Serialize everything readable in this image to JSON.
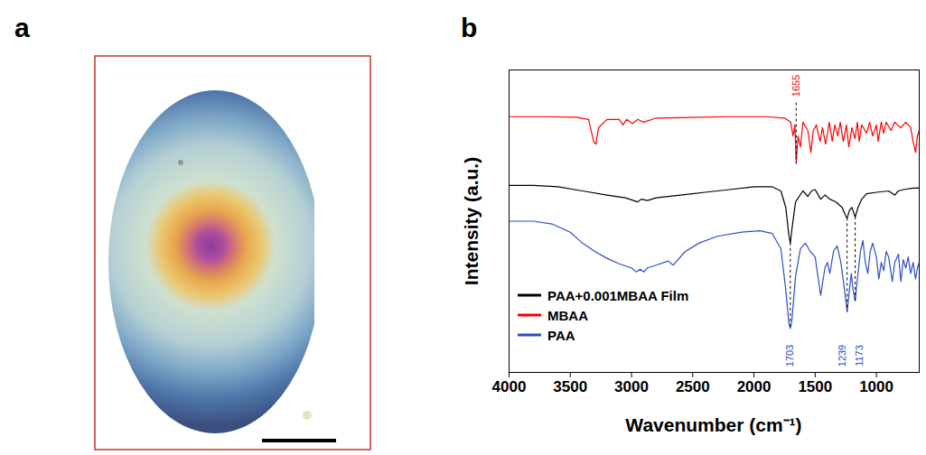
{
  "panel_labels": [
    "a",
    "b"
  ],
  "chart_data": {
    "type": "line",
    "x_label": "Wavenumber (cm⁻¹)",
    "y_label": "Intensity (a.u.)",
    "xlim": [
      4000,
      650
    ],
    "xticks": [
      4000,
      3500,
      3000,
      2500,
      2000,
      1500,
      1000
    ],
    "ylim": [
      0,
      110
    ],
    "tick_labels": "x",
    "grid": false,
    "legend": "lower left",
    "series": [
      {
        "name": "PAA+0.001MBAA Film",
        "color": "#000000",
        "x": [
          4000,
          3800,
          3600,
          3400,
          3200,
          3050,
          2950,
          2920,
          2870,
          2800,
          2600,
          2400,
          2200,
          2000,
          1850,
          1780,
          1740,
          1715,
          1703,
          1690,
          1660,
          1600,
          1560,
          1530,
          1500,
          1455,
          1420,
          1380,
          1330,
          1280,
          1250,
          1239,
          1220,
          1200,
          1173,
          1150,
          1120,
          1080,
          1000,
          900,
          850,
          820,
          780,
          700,
          650
        ],
        "values": [
          68,
          68,
          67.5,
          66,
          64.5,
          63.5,
          62,
          63,
          62.5,
          63.5,
          64.5,
          65.5,
          66.5,
          67.5,
          67.5,
          66,
          60,
          50,
          47,
          52,
          62,
          66,
          64,
          66,
          66.5,
          63,
          64.5,
          63,
          62,
          60,
          57,
          56,
          59,
          60,
          56.5,
          60,
          63,
          65,
          65.5,
          66,
          64.5,
          66,
          66.5,
          67,
          67
        ]
      },
      {
        "name": "MBAA",
        "color": "#ff0000",
        "x": [
          4000,
          3700,
          3450,
          3350,
          3310,
          3290,
          3270,
          3200,
          3100,
          3070,
          3040,
          2990,
          2950,
          2900,
          2800,
          2200,
          1900,
          1750,
          1700,
          1680,
          1665,
          1655,
          1640,
          1620,
          1600,
          1560,
          1535,
          1515,
          1490,
          1460,
          1440,
          1415,
          1395,
          1385,
          1360,
          1340,
          1315,
          1295,
          1270,
          1245,
          1225,
          1200,
          1175,
          1155,
          1140,
          1120,
          1080,
          1055,
          1030,
          1000,
          985,
          960,
          940,
          920,
          880,
          850,
          800,
          760,
          720,
          700,
          680,
          665,
          650
        ],
        "values": [
          93,
          93,
          92.8,
          92,
          84,
          83,
          89,
          92,
          92,
          90,
          92,
          90.5,
          92,
          91,
          92.5,
          93,
          93,
          92.5,
          91,
          86,
          90,
          76,
          86,
          82,
          91,
          88,
          80,
          88,
          90,
          84,
          89,
          83,
          88,
          91,
          84,
          90,
          86,
          91,
          84,
          90,
          82,
          89,
          85,
          91,
          84,
          90,
          87,
          91,
          86,
          90,
          84,
          91,
          87,
          91,
          88,
          91,
          89,
          91,
          89,
          84,
          80,
          86,
          88
        ]
      },
      {
        "name": "PAA",
        "color": "#2e4fc4",
        "x": [
          4000,
          3800,
          3650,
          3500,
          3400,
          3300,
          3200,
          3100,
          3000,
          2960,
          2930,
          2900,
          2870,
          2800,
          2700,
          2660,
          2620,
          2560,
          2450,
          2300,
          2100,
          1950,
          1850,
          1780,
          1740,
          1715,
          1703,
          1690,
          1660,
          1620,
          1580,
          1540,
          1500,
          1455,
          1420,
          1400,
          1380,
          1350,
          1320,
          1290,
          1260,
          1239,
          1220,
          1205,
          1190,
          1173,
          1155,
          1130,
          1110,
          1090,
          1070,
          1050,
          1030,
          1000,
          980,
          960,
          940,
          920,
          900,
          870,
          850,
          820,
          800,
          780,
          760,
          740,
          720,
          700,
          680,
          665,
          650
        ],
        "values": [
          55,
          55,
          54,
          51,
          47,
          44,
          41.5,
          39.5,
          38,
          36.5,
          37.5,
          36.5,
          38,
          39,
          40.5,
          39,
          41,
          44,
          47,
          49.5,
          51,
          51.5,
          50.5,
          45,
          30,
          18,
          16,
          19,
          35,
          45,
          47,
          44,
          42,
          28,
          38,
          40,
          36,
          44,
          46,
          40,
          30,
          22,
          30,
          36,
          30,
          26,
          34,
          44,
          48,
          40,
          36,
          44,
          47,
          42,
          34,
          40,
          37,
          44,
          42,
          33,
          40,
          43,
          33,
          41,
          38,
          42,
          36,
          40,
          34,
          38,
          40
        ]
      }
    ],
    "annotations": [
      {
        "text": "1655",
        "x": 1655,
        "y1": 98,
        "y2": 76,
        "color": "#ff0000"
      },
      {
        "text": "1703",
        "x": 1703,
        "y1": 47,
        "y2": 16,
        "color": "#2e4fc4"
      },
      {
        "text": "1239",
        "x": 1239,
        "y1": 56,
        "y2": 22,
        "color": "#2e4fc4"
      },
      {
        "text": "1173",
        "x": 1173,
        "y1": 56.5,
        "y2": 26,
        "color": "#2e4fc4"
      }
    ]
  }
}
